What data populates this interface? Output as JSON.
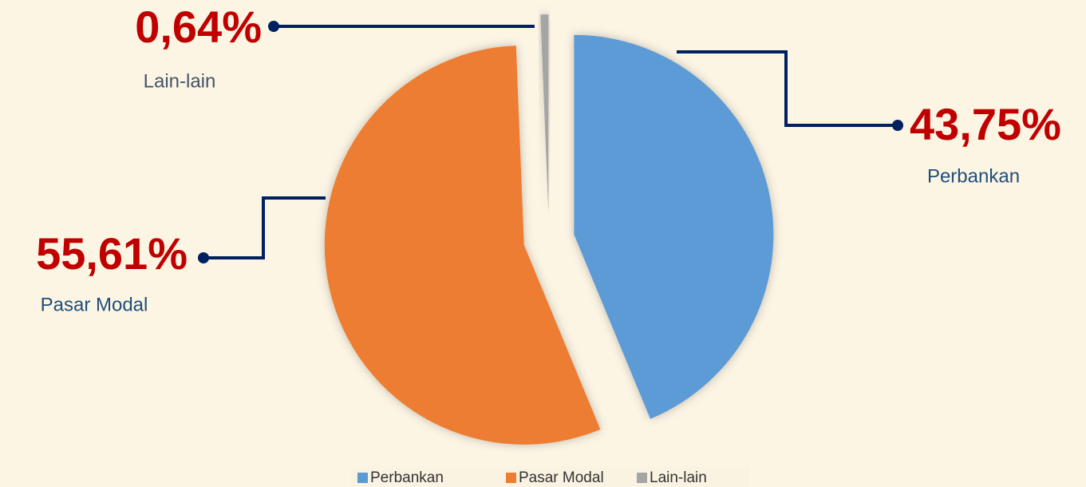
{
  "chart_data": {
    "type": "pie",
    "categories": [
      "Perbankan",
      "Pasar Modal",
      "Lain-lain"
    ],
    "values": [
      43.75,
      55.61,
      0.64
    ],
    "value_labels": [
      "43,75%",
      "55,61%",
      "0,64%"
    ],
    "colors": [
      "#5b9bd5",
      "#ed7d31",
      "#a5a5a5"
    ],
    "legend": "bottom"
  }
}
